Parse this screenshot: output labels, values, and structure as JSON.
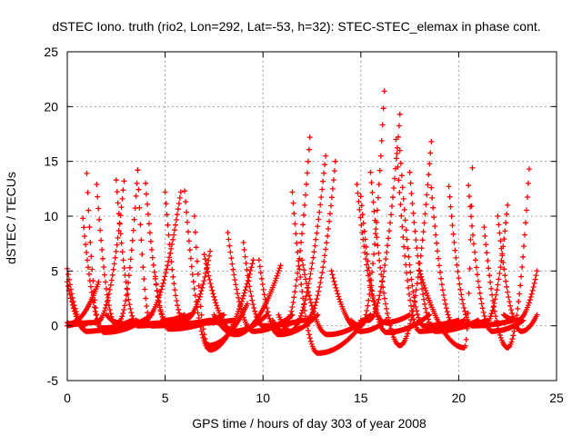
{
  "chart_data": {
    "type": "scatter",
    "title": "dSTEC Iono. truth (rio2, Lon=292, Lat=-53, h=32): STEC-STEC_elemax in phase cont.",
    "xlabel": "GPS time / hours of day 303 of year 2008",
    "ylabel": "dSTEC  / TECUs",
    "xlim": [
      0,
      25
    ],
    "ylim": [
      -5,
      25
    ],
    "xticks": [
      "0",
      "5",
      "10",
      "15",
      "20",
      "25"
    ],
    "yticks": [
      "-5",
      "0",
      "5",
      "10",
      "15",
      "20",
      "25"
    ],
    "grid": true,
    "marker": "plus",
    "color": "#ff0000",
    "arcs": [
      {
        "t0": 0.0,
        "t1": 0.9,
        "min_t": 0.9,
        "min_v": 0.0,
        "v_start": 5.2,
        "v_end": 0.0
      },
      {
        "t0": 0.0,
        "t1": 2.9,
        "min_t": 1.5,
        "min_v": 0.3,
        "v_start": 0.0,
        "v_end": 13.2
      },
      {
        "t0": 0.0,
        "t1": 3.3,
        "min_t": 1.0,
        "min_v": -0.5,
        "v_start": 4.0,
        "v_end": 0.5
      },
      {
        "t0": 0.0,
        "t1": 1.6,
        "min_t": 0.1,
        "min_v": 0.2,
        "v_start": 0.3,
        "v_end": 4.0
      },
      {
        "t0": 1.0,
        "t1": 4.0,
        "min_t": 1.7,
        "min_v": -0.2,
        "v_start": 13.9,
        "v_end": 0.5
      },
      {
        "t0": 0.8,
        "t1": 4.3,
        "min_t": 1.9,
        "min_v": -0.6,
        "v_start": 9.8,
        "v_end": 1.0
      },
      {
        "t0": 1.5,
        "t1": 5.0,
        "min_t": 2.5,
        "min_v": 0.1,
        "v_start": 12.9,
        "v_end": 0.3
      },
      {
        "t0": 2.5,
        "t1": 6.3,
        "min_t": 3.6,
        "min_v": 0.0,
        "v_start": 13.3,
        "v_end": 1.0
      },
      {
        "t0": 2.0,
        "t1": 3.6,
        "min_t": 2.6,
        "min_v": 0.3,
        "v_start": 1.0,
        "v_end": 14.2
      },
      {
        "t0": 3.6,
        "t1": 7.3,
        "min_t": 4.3,
        "min_v": 0.0,
        "v_start": 14.2,
        "v_end": 0.5
      },
      {
        "t0": 3.5,
        "t1": 5.8,
        "min_t": 3.8,
        "min_v": 0.3,
        "v_start": 0.5,
        "v_end": 12.2
      },
      {
        "t0": 4.0,
        "t1": 8.0,
        "min_t": 5.2,
        "min_v": -0.3,
        "v_start": 13.0,
        "v_end": 1.0
      },
      {
        "t0": 4.5,
        "t1": 6.0,
        "min_t": 5.0,
        "min_v": 0.5,
        "v_start": 4.5,
        "v_end": 1.0
      },
      {
        "t0": 5.0,
        "t1": 8.5,
        "min_t": 6.0,
        "min_v": 0.2,
        "v_start": 12.2,
        "v_end": 0.5
      },
      {
        "t0": 6.0,
        "t1": 9.5,
        "min_t": 7.3,
        "min_v": -2.2,
        "v_start": 12.3,
        "v_end": 6.0
      },
      {
        "t0": 6.5,
        "t1": 9.2,
        "min_t": 7.2,
        "min_v": -1.8,
        "v_start": 10.0,
        "v_end": 2.0
      },
      {
        "t0": 5.0,
        "t1": 7.3,
        "min_t": 6.0,
        "min_v": 0.5,
        "v_start": 0.5,
        "v_end": 6.8
      },
      {
        "t0": 7.0,
        "t1": 10.2,
        "min_t": 8.5,
        "min_v": -0.5,
        "v_start": 6.5,
        "v_end": 1.0
      },
      {
        "t0": 7.5,
        "t1": 10.9,
        "min_t": 8.6,
        "min_v": -0.8,
        "v_start": 1.0,
        "v_end": 5.5
      },
      {
        "t0": 8.2,
        "t1": 11.5,
        "min_t": 9.5,
        "min_v": -0.5,
        "v_start": 8.5,
        "v_end": 1.0
      },
      {
        "t0": 9.0,
        "t1": 12.0,
        "min_t": 10.0,
        "min_v": 0.0,
        "v_start": 7.6,
        "v_end": 0.5
      },
      {
        "t0": 9.8,
        "t1": 12.8,
        "min_t": 10.8,
        "min_v": -0.8,
        "v_start": 6.0,
        "v_end": 1.0
      },
      {
        "t0": 10.5,
        "t1": 12.4,
        "min_t": 11.0,
        "min_v": -0.5,
        "v_start": 0.5,
        "v_end": 17.2
      },
      {
        "t0": 10.8,
        "t1": 13.2,
        "min_t": 11.4,
        "min_v": -0.5,
        "v_start": 1.0,
        "v_end": 15.5
      },
      {
        "t0": 11.5,
        "t1": 15.2,
        "min_t": 12.8,
        "min_v": -2.5,
        "v_start": 12.2,
        "v_end": 0.5
      },
      {
        "t0": 11.8,
        "t1": 13.7,
        "min_t": 12.2,
        "min_v": 0.5,
        "v_start": 0.5,
        "v_end": 15.0
      },
      {
        "t0": 12.0,
        "t1": 15.5,
        "min_t": 13.3,
        "min_v": -0.8,
        "v_start": 6.0,
        "v_end": 1.0
      },
      {
        "t0": 13.5,
        "t1": 16.3,
        "min_t": 15.0,
        "min_v": -0.5,
        "v_start": 5.0,
        "v_end": 0.5
      },
      {
        "t0": 14.8,
        "t1": 17.5,
        "min_t": 16.2,
        "min_v": 0.3,
        "v_start": 12.9,
        "v_end": 1.0
      },
      {
        "t0": 14.5,
        "t1": 16.2,
        "min_t": 15.0,
        "min_v": 0.0,
        "v_start": 0.5,
        "v_end": 21.4
      },
      {
        "t0": 15.0,
        "t1": 18.5,
        "min_t": 16.3,
        "min_v": -0.6,
        "v_start": 11.8,
        "v_end": 1.0
      },
      {
        "t0": 15.0,
        "t1": 17.0,
        "min_t": 15.4,
        "min_v": 0.5,
        "v_start": 0.5,
        "v_end": 19.3
      },
      {
        "t0": 15.5,
        "t1": 18.6,
        "min_t": 17.0,
        "min_v": -1.8,
        "v_start": 14.0,
        "v_end": 16.8
      },
      {
        "t0": 16.8,
        "t1": 20.3,
        "min_t": 18.0,
        "min_v": -0.5,
        "v_start": 17.0,
        "v_end": 0.5
      },
      {
        "t0": 17.0,
        "t1": 20.0,
        "min_t": 18.2,
        "min_v": 0.0,
        "v_start": 16.0,
        "v_end": 0.5
      },
      {
        "t0": 17.5,
        "t1": 21.0,
        "min_t": 18.8,
        "min_v": -0.5,
        "v_start": 14.0,
        "v_end": 0.5
      },
      {
        "t0": 18.6,
        "t1": 21.5,
        "min_t": 19.8,
        "min_v": 0.0,
        "v_start": 12.6,
        "v_end": 0.5
      },
      {
        "t0": 18.0,
        "t1": 20.7,
        "min_t": 20.3,
        "min_v": -2.0,
        "v_start": 5.0,
        "v_end": 14.4
      },
      {
        "t0": 19.5,
        "t1": 22.8,
        "min_t": 20.7,
        "min_v": 0.0,
        "v_start": 12.7,
        "v_end": 0.5
      },
      {
        "t0": 20.5,
        "t1": 23.3,
        "min_t": 21.7,
        "min_v": -0.5,
        "v_start": 12.8,
        "v_end": 0.5
      },
      {
        "t0": 21.0,
        "t1": 22.5,
        "min_t": 21.3,
        "min_v": 0.0,
        "v_start": 0.5,
        "v_end": 11.0
      },
      {
        "t0": 21.3,
        "t1": 23.6,
        "min_t": 22.5,
        "min_v": -2.0,
        "v_start": 9.0,
        "v_end": 14.3
      },
      {
        "t0": 22.0,
        "t1": 24.0,
        "min_t": 23.2,
        "min_v": -0.5,
        "v_start": 10.0,
        "v_end": 1.0
      },
      {
        "t0": 22.3,
        "t1": 24.0,
        "min_t": 23.0,
        "min_v": 0.5,
        "v_start": 1.0,
        "v_end": 5.0
      }
    ]
  }
}
